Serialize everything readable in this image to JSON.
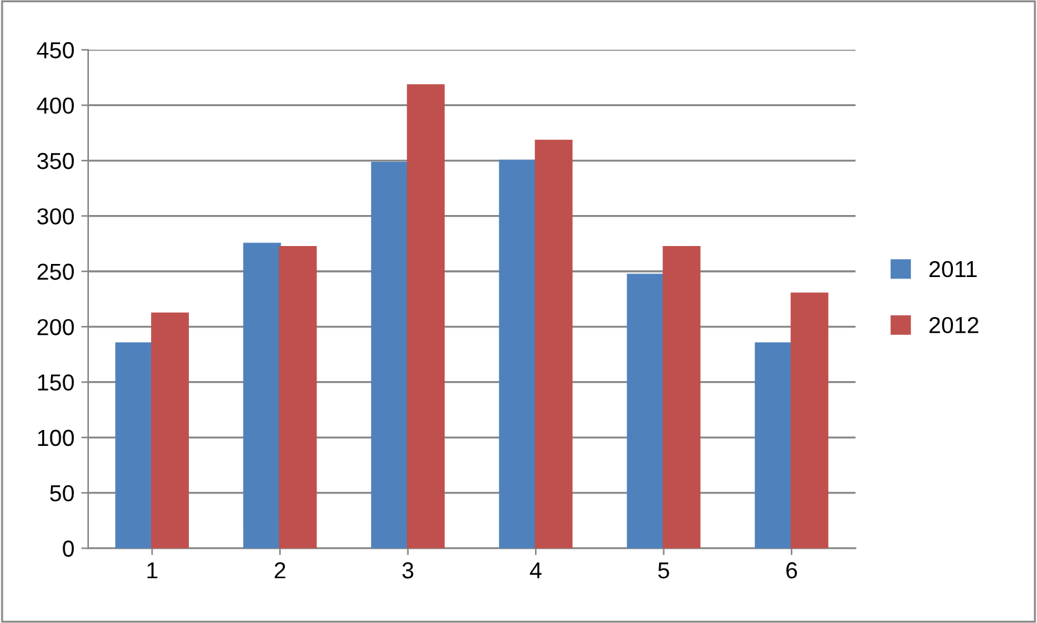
{
  "chart_data": {
    "type": "bar",
    "categories": [
      "1",
      "2",
      "3",
      "4",
      "5",
      "6"
    ],
    "series": [
      {
        "name": "2011",
        "color": "#4f81bd",
        "values": [
          185,
          275,
          348,
          350,
          247,
          185
        ]
      },
      {
        "name": "2012",
        "color": "#c0504d",
        "values": [
          212,
          272,
          418,
          368,
          272,
          230
        ]
      }
    ],
    "ylim": [
      0,
      450
    ],
    "yticks": [
      0,
      50,
      100,
      150,
      200,
      250,
      300,
      350,
      400,
      450
    ],
    "grid": "y",
    "legend": "right"
  }
}
